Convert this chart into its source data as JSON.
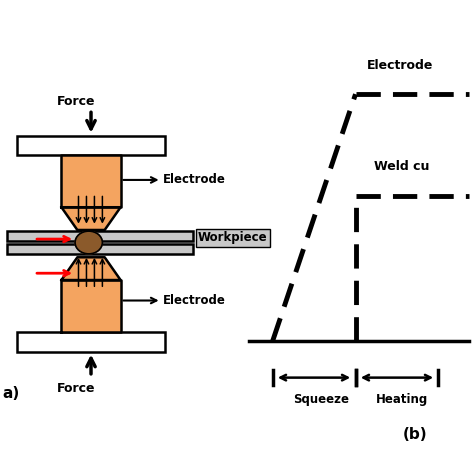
{
  "bg_color": "#ffffff",
  "electrode_color": "#f4a460",
  "workpiece_color": "#c8c8c8",
  "nugget_color": "#8b5a2b",
  "black": "#000000",
  "red": "#ff0000",
  "label_electrode_top": "Electrode",
  "label_workpiece": "Workpiece",
  "label_force_top": "Force",
  "label_force_bot": "Force",
  "label_electrode_bot": "Electrode",
  "label_a": "a)",
  "label_b": "(b)",
  "label_electrode_b": "Electrode",
  "label_weld_cu": "Weld cu",
  "label_squeeze": "Squeeze",
  "label_heating": "Heating",
  "fig_width": 4.74,
  "fig_height": 4.74,
  "dpi": 100
}
